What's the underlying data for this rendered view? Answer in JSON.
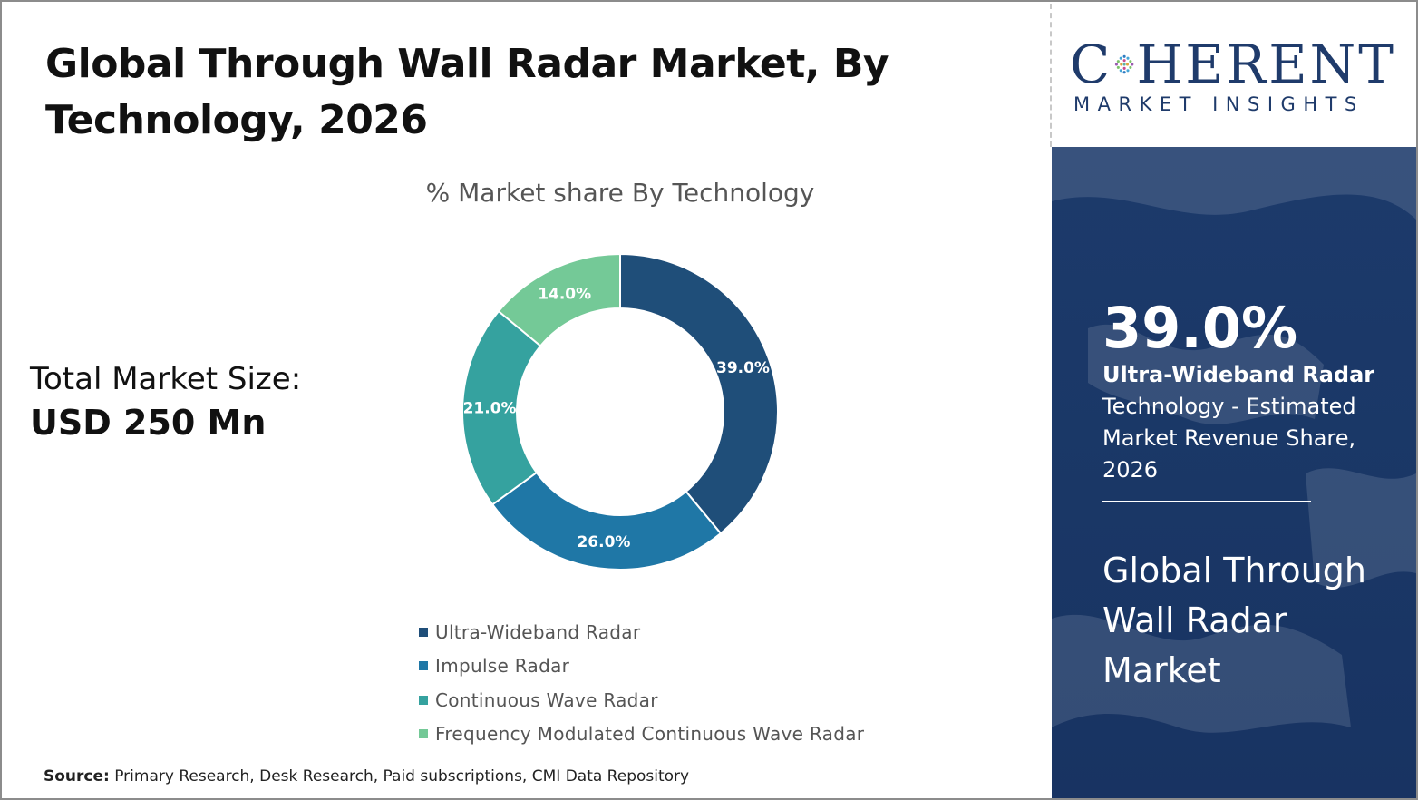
{
  "title": "Global Through Wall Radar Market, By Technology, 2026",
  "title_line1": "Global Through Wall Radar Market, By",
  "title_line2": "Technology, 2026",
  "market_size": {
    "label": "Total Market Size:",
    "value": "USD 250 Mn"
  },
  "source": {
    "label": "Source:",
    "text": "Primary Research, Desk Research, Paid subscriptions, CMI Data Repository"
  },
  "logo": {
    "main_left": "C",
    "main_right": "HERENT",
    "sub": "MARKET INSIGHTS",
    "color": "#1f3b6b"
  },
  "side_panel": {
    "stat_value": "39.0%",
    "stat_label_bold": "Ultra-Wideband Radar",
    "stat_label_rest": "Technology - Estimated Market Revenue Share, 2026",
    "panel_title": "Global Through Wall Radar Market",
    "background": "#1c3a6b"
  },
  "chart_data": {
    "type": "pie",
    "subtitle": "% Market share By Technology",
    "categories": [
      "Ultra-Wideband Radar",
      "Impulse Radar",
      "Continuous Wave Radar",
      "Frequency Modulated Continuous Wave Radar"
    ],
    "values": [
      39.0,
      26.0,
      21.0,
      14.0
    ],
    "labels": [
      "39.0%",
      "26.0%",
      "21.0%",
      "14.0%"
    ],
    "colors": [
      "#1f4e79",
      "#1f77a6",
      "#35a29f",
      "#74c997"
    ],
    "donut": true,
    "legend": "bottom",
    "start": "top, clockwise"
  }
}
